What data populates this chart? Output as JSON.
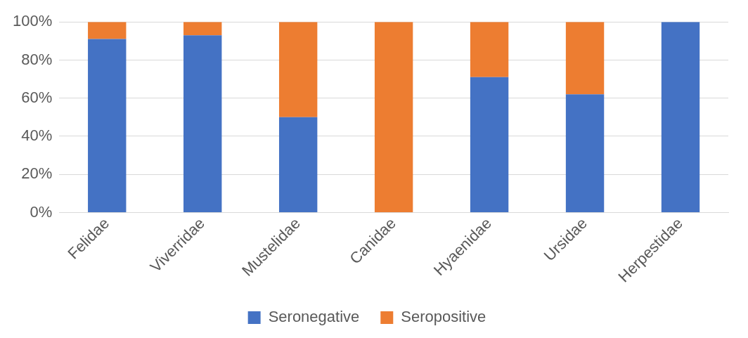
{
  "chart_data": {
    "type": "bar",
    "stacked": true,
    "categories": [
      "Felidae",
      "Viverridae",
      "Mustelidae",
      "Canidae",
      "Hyaenidae",
      "Ursidae",
      "Herpestidae"
    ],
    "series": [
      {
        "name": "Seronegative",
        "color": "#4472c4",
        "values": [
          91,
          93,
          50,
          0,
          71,
          62,
          100
        ]
      },
      {
        "name": "Seropositive",
        "color": "#ed7d31",
        "values": [
          9,
          7,
          50,
          100,
          29,
          38,
          0
        ]
      }
    ],
    "ylim": [
      0,
      100
    ],
    "yticks": [
      {
        "value": 0,
        "label": "0%"
      },
      {
        "value": 20,
        "label": "20%"
      },
      {
        "value": 40,
        "label": "40%"
      },
      {
        "value": 60,
        "label": "60%"
      },
      {
        "value": 80,
        "label": "80%"
      },
      {
        "value": 100,
        "label": "100%"
      }
    ],
    "grid": "y",
    "legend": "bottom"
  }
}
